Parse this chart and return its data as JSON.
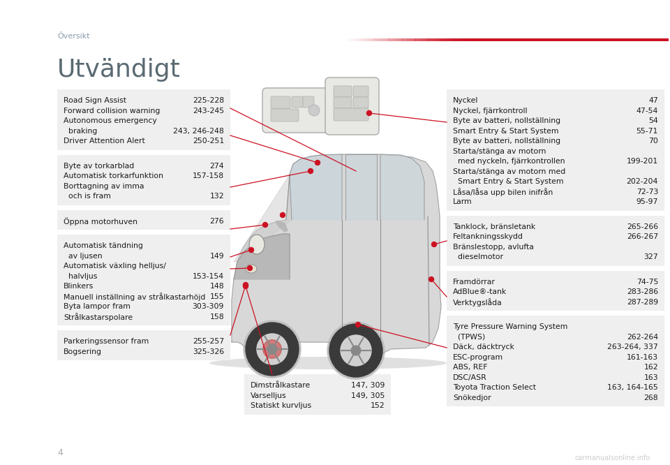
{
  "bg_color": "#ffffff",
  "box_bg": "#efefef",
  "text_color": "#1a1a1a",
  "red_color": "#cc1122",
  "page_title": "Översikt",
  "section_title": "Utvändigt",
  "page_num": "4",
  "left_boxes": [
    {
      "items": [
        [
          "Road Sign Assist",
          "225-228"
        ],
        [
          "Forward collision warning",
          "243-245"
        ],
        [
          "Autonomous emergency\n  braking",
          "243, 246-248"
        ],
        [
          "Driver Attention Alert",
          "250-251"
        ]
      ]
    },
    {
      "items": [
        [
          "Byte av torkarblad",
          "274"
        ],
        [
          "Automatisk torkarfunktion",
          "157-158"
        ],
        [
          "Borttagning av imma\n  och is fram",
          "132"
        ]
      ]
    },
    {
      "items": [
        [
          "Öppna motorhuven",
          "276"
        ]
      ]
    },
    {
      "items": [
        [
          "Automatisk tändning\n  av ljusen",
          "149"
        ],
        [
          "Automatisk växling helljus/\n  halvljus",
          "153-154"
        ],
        [
          "Blinkers",
          "148"
        ],
        [
          "Manuell inställning av strålkastarhöjd",
          "155"
        ],
        [
          "Byta lampor fram",
          "303-309"
        ],
        [
          "Strålkastarspolare",
          "158"
        ]
      ]
    },
    {
      "items": [
        [
          "Parkeringssensor fram",
          "255-257"
        ],
        [
          "Bogsering",
          "325-326"
        ]
      ]
    }
  ],
  "right_boxes": [
    {
      "items": [
        [
          "Nyckel",
          "47"
        ],
        [
          "Nyckel, fjärrkontroll",
          "47-54"
        ],
        [
          "Byte av batteri, nollställning",
          "54"
        ],
        [
          "Smart Entry & Start System",
          "55-71"
        ],
        [
          "Byte av batteri, nollställning",
          "70"
        ],
        [
          "Starta/stänga av motorn\n  med nyckeln, fjärrkontrollen",
          "199-201"
        ],
        [
          "Starta/stänga av motorn med\n  Smart Entry & Start System",
          "202-204"
        ],
        [
          "Låsa/låsa upp bilen inifrån",
          "72-73"
        ],
        [
          "Larm",
          "95-97"
        ]
      ]
    },
    {
      "items": [
        [
          "Tanklock, bränsletank",
          "265-266"
        ],
        [
          "Feltankningsskydd",
          "266-267"
        ],
        [
          "Bränslestopp, avlufta\n  dieselmotor",
          "327"
        ]
      ]
    },
    {
      "items": [
        [
          "Framdörrar",
          "74-75"
        ],
        [
          "AdBlue®-tank",
          "283-286"
        ],
        [
          "Verktygslåda",
          "287-289"
        ]
      ]
    },
    {
      "items": [
        [
          "Tyre Pressure Warning System\n  (TPWS)",
          "262-264"
        ],
        [
          "Däck, däcktryck",
          "263-264, 337"
        ],
        [
          "ESC-program",
          "161-163"
        ],
        [
          "ABS, REF",
          "162"
        ],
        [
          "DSC/ASR",
          "163"
        ],
        [
          "Toyota Traction Select",
          "163, 164-165"
        ],
        [
          "Snökedjor",
          "268"
        ]
      ]
    }
  ],
  "fog_box": {
    "items": [
      [
        "Dimstrålkastare",
        "147, 309"
      ],
      [
        "Varselljus",
        "149, 305"
      ],
      [
        "Statiskt kurvljus",
        "152"
      ]
    ]
  }
}
